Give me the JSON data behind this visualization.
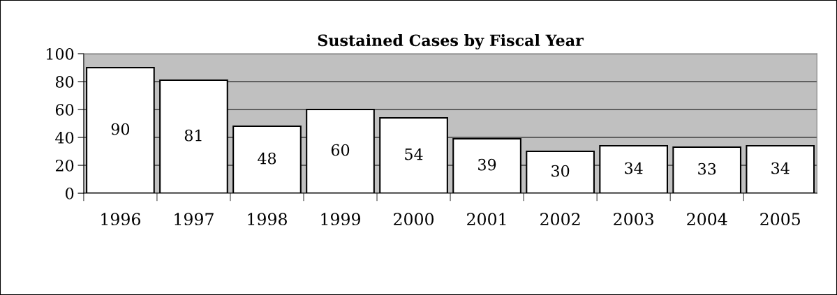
{
  "chart_data": {
    "type": "bar",
    "title": "Sustained Cases by Fiscal Year",
    "categories": [
      "1996",
      "1997",
      "1998",
      "1999",
      "2000",
      "2001",
      "2002",
      "2003",
      "2004",
      "2005"
    ],
    "values": [
      90,
      81,
      48,
      60,
      54,
      39,
      30,
      34,
      33,
      34
    ],
    "color": "#ffffff",
    "ylim": [
      0,
      100
    ],
    "yticks": [
      0,
      20,
      40,
      60,
      80,
      100
    ],
    "grid": "y",
    "data_labels": true,
    "legend": false
  }
}
